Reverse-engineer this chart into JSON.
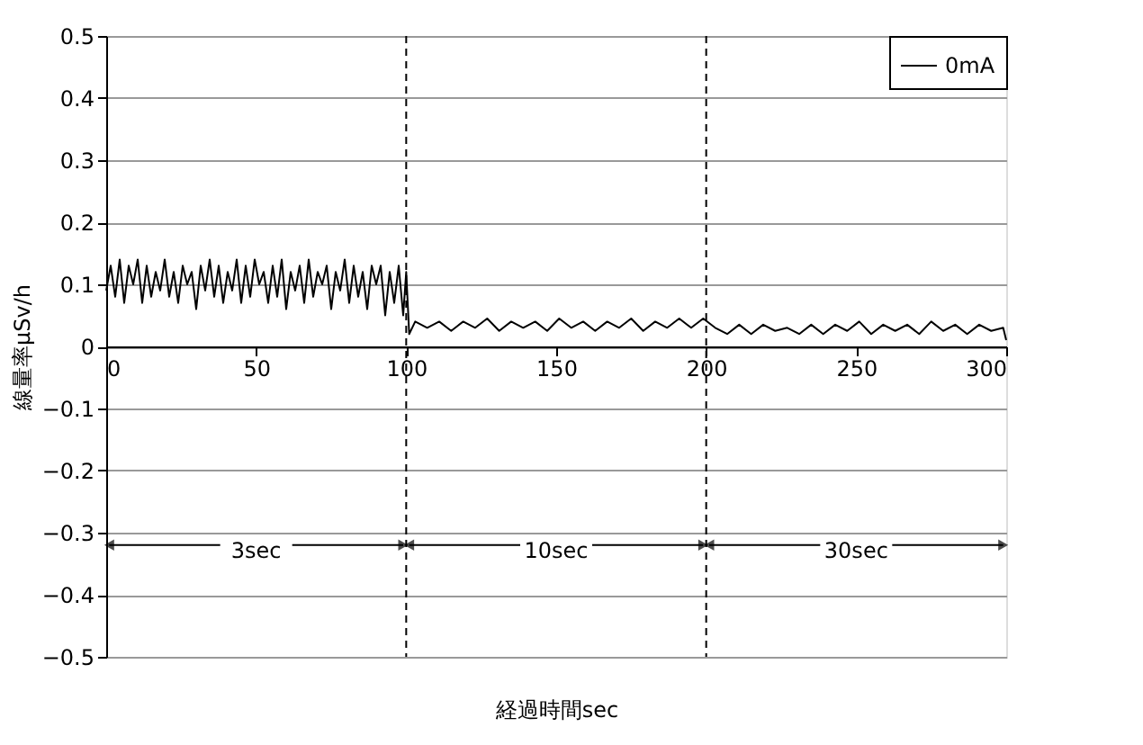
{
  "chart_data": {
    "type": "line",
    "xlabel": "経過時間sec",
    "ylabel": "線量率μSv/h",
    "xlim": [
      0,
      300
    ],
    "xticks": [
      0,
      50,
      100,
      150,
      200,
      250,
      300
    ],
    "ylim": [
      -0.5,
      0.5
    ],
    "yticks": [
      -0.5,
      -0.4,
      -0.3,
      -0.2,
      -0.1,
      0,
      0.1,
      0.2,
      0.3,
      0.4,
      0.5
    ],
    "grid": "y",
    "legend": "top right",
    "line_style": "solid",
    "marker": "none",
    "x": [
      0,
      1.5,
      3,
      4.5,
      6,
      7.5,
      9,
      10.5,
      12,
      13.5,
      15,
      16.5,
      18,
      19.5,
      21,
      22.5,
      24,
      25.5,
      27,
      28.5,
      30,
      31.5,
      33,
      34.5,
      36,
      37.5,
      39,
      40.5,
      42,
      43.5,
      45,
      46.5,
      48,
      49.5,
      51,
      52.5,
      54,
      55.5,
      57,
      58.5,
      60,
      61.5,
      63,
      64.5,
      66,
      67.5,
      69,
      70.5,
      72,
      73.5,
      75,
      76.5,
      78,
      79.5,
      81,
      82.5,
      84,
      85.5,
      87,
      88.5,
      90,
      91.5,
      93,
      94.5,
      96,
      97.5,
      99,
      100,
      101,
      103,
      107,
      111,
      115,
      119,
      123,
      127,
      131,
      135,
      139,
      143,
      147,
      151,
      155,
      159,
      163,
      167,
      171,
      175,
      179,
      183,
      187,
      191,
      195,
      199,
      203,
      207,
      211,
      215,
      219,
      223,
      227,
      231,
      235,
      239,
      243,
      247,
      251,
      255,
      259,
      263,
      267,
      271,
      275,
      279,
      283,
      287,
      291,
      295,
      299,
      300
    ],
    "series": [
      {
        "name": "0mA",
        "color": "#000000",
        "values": [
          0.09,
          0.13,
          0.08,
          0.14,
          0.07,
          0.13,
          0.1,
          0.14,
          0.07,
          0.13,
          0.08,
          0.12,
          0.09,
          0.14,
          0.08,
          0.12,
          0.07,
          0.13,
          0.1,
          0.12,
          0.06,
          0.13,
          0.09,
          0.14,
          0.08,
          0.13,
          0.07,
          0.12,
          0.09,
          0.14,
          0.07,
          0.13,
          0.08,
          0.14,
          0.1,
          0.12,
          0.07,
          0.13,
          0.08,
          0.14,
          0.06,
          0.12,
          0.09,
          0.13,
          0.07,
          0.14,
          0.08,
          0.12,
          0.1,
          0.13,
          0.06,
          0.12,
          0.09,
          0.14,
          0.07,
          0.13,
          0.08,
          0.12,
          0.06,
          0.13,
          0.1,
          0.13,
          0.05,
          0.12,
          0.07,
          0.13,
          0.05,
          0.12,
          0.02,
          0.04,
          0.03,
          0.04,
          0.025,
          0.04,
          0.03,
          0.045,
          0.025,
          0.04,
          0.03,
          0.04,
          0.025,
          0.045,
          0.03,
          0.04,
          0.025,
          0.04,
          0.03,
          0.045,
          0.025,
          0.04,
          0.03,
          0.045,
          0.03,
          0.045,
          0.03,
          0.02,
          0.035,
          0.02,
          0.035,
          0.025,
          0.03,
          0.02,
          0.035,
          0.02,
          0.035,
          0.025,
          0.04,
          0.02,
          0.035,
          0.025,
          0.035,
          0.02,
          0.04,
          0.025,
          0.035,
          0.02,
          0.035,
          0.025,
          0.03,
          0.01
        ]
      }
    ],
    "ref_lines": [
      {
        "axis": "x",
        "value": 100,
        "color": "#000000",
        "line_style": "dashed"
      },
      {
        "axis": "x",
        "value": 200,
        "color": "#000000",
        "line_style": "dashed"
      }
    ],
    "annotations": [
      {
        "text": "3sec",
        "x": 0,
        "y": -0.32
      },
      {
        "text": "10sec",
        "x": 100,
        "y": -0.32
      },
      {
        "text": "30sec",
        "x": 200,
        "y": -0.32
      }
    ]
  }
}
